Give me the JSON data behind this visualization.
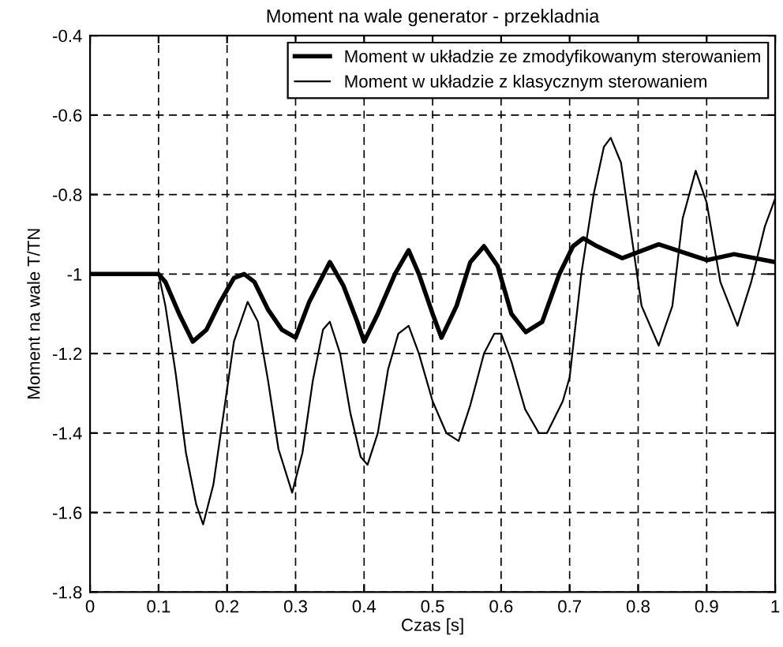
{
  "chart_data": {
    "type": "line",
    "title": "Moment na wale generator - przekladnia",
    "xlabel": "Czas [s]",
    "ylabel": "Moment na wale T/TN",
    "xlim": [
      0,
      1
    ],
    "xticks": [
      0,
      0.1,
      0.2,
      0.3,
      0.4,
      0.5,
      0.6,
      0.7,
      0.8,
      0.9,
      1
    ],
    "ylim": [
      -1.8,
      -0.4
    ],
    "yticks": [
      -1.8,
      -1.6,
      -1.4,
      -1.2,
      -1,
      -0.8,
      -0.6,
      -0.4
    ],
    "grid": true,
    "legend": "top right",
    "line_style": "solid",
    "series": [
      {
        "name": "Moment w układzie ze zmodyfikowanym sterowaniem",
        "color": "#000000",
        "x": [
          0,
          0.1,
          0.11,
          0.13,
          0.15,
          0.17,
          0.19,
          0.21,
          0.225,
          0.24,
          0.26,
          0.28,
          0.3,
          0.32,
          0.35,
          0.37,
          0.39,
          0.4,
          0.42,
          0.445,
          0.465,
          0.48,
          0.5,
          0.513,
          0.535,
          0.555,
          0.575,
          0.595,
          0.615,
          0.636,
          0.66,
          0.685,
          0.705,
          0.72,
          0.74,
          0.777,
          0.83,
          0.9,
          0.94,
          1.0
        ],
        "values": [
          -1,
          -1,
          -1.02,
          -1.1,
          -1.17,
          -1.14,
          -1.07,
          -1.01,
          -1.0,
          -1.02,
          -1.09,
          -1.14,
          -1.16,
          -1.07,
          -0.97,
          -1.03,
          -1.12,
          -1.17,
          -1.1,
          -1.0,
          -0.94,
          -1.0,
          -1.1,
          -1.16,
          -1.08,
          -0.97,
          -0.93,
          -0.98,
          -1.1,
          -1.146,
          -1.12,
          -1.0,
          -0.93,
          -0.91,
          -0.93,
          -0.96,
          -0.925,
          -0.965,
          -0.95,
          -0.97
        ]
      },
      {
        "name": "Moment w układzie z klasycznym sterowaniem",
        "color": "#000000",
        "x": [
          0,
          0.1,
          0.11,
          0.125,
          0.14,
          0.155,
          0.165,
          0.18,
          0.195,
          0.21,
          0.23,
          0.245,
          0.26,
          0.275,
          0.295,
          0.31,
          0.325,
          0.34,
          0.35,
          0.365,
          0.38,
          0.395,
          0.405,
          0.42,
          0.435,
          0.45,
          0.465,
          0.48,
          0.5,
          0.52,
          0.538,
          0.555,
          0.575,
          0.59,
          0.6,
          0.615,
          0.635,
          0.655,
          0.667,
          0.69,
          0.7,
          0.717,
          0.735,
          0.75,
          0.76,
          0.775,
          0.79,
          0.805,
          0.83,
          0.85,
          0.865,
          0.884,
          0.9,
          0.92,
          0.945,
          0.965,
          0.985,
          1.0
        ],
        "values": [
          -1,
          -1,
          -1.08,
          -1.25,
          -1.45,
          -1.58,
          -1.63,
          -1.53,
          -1.35,
          -1.17,
          -1.07,
          -1.12,
          -1.27,
          -1.44,
          -1.55,
          -1.45,
          -1.27,
          -1.14,
          -1.12,
          -1.2,
          -1.35,
          -1.46,
          -1.48,
          -1.4,
          -1.24,
          -1.15,
          -1.13,
          -1.2,
          -1.32,
          -1.4,
          -1.42,
          -1.33,
          -1.2,
          -1.15,
          -1.15,
          -1.22,
          -1.34,
          -1.4,
          -1.4,
          -1.32,
          -1.26,
          -1.0,
          -0.8,
          -0.68,
          -0.657,
          -0.72,
          -0.9,
          -1.08,
          -1.18,
          -1.08,
          -0.86,
          -0.74,
          -0.82,
          -1.02,
          -1.13,
          -1.02,
          -0.88,
          -0.81
        ]
      }
    ]
  }
}
